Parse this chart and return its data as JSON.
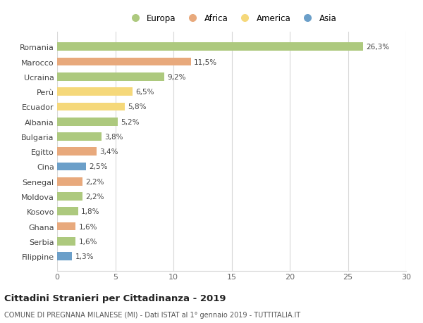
{
  "countries": [
    "Romania",
    "Marocco",
    "Ucraina",
    "Perù",
    "Ecuador",
    "Albania",
    "Bulgaria",
    "Egitto",
    "Cina",
    "Senegal",
    "Moldova",
    "Kosovo",
    "Ghana",
    "Serbia",
    "Filippine"
  ],
  "values": [
    26.3,
    11.5,
    9.2,
    6.5,
    5.8,
    5.2,
    3.8,
    3.4,
    2.5,
    2.2,
    2.2,
    1.8,
    1.6,
    1.6,
    1.3
  ],
  "labels": [
    "26,3%",
    "11,5%",
    "9,2%",
    "6,5%",
    "5,8%",
    "5,2%",
    "3,8%",
    "3,4%",
    "2,5%",
    "2,2%",
    "2,2%",
    "1,8%",
    "1,6%",
    "1,6%",
    "1,3%"
  ],
  "continents": [
    "Europa",
    "Africa",
    "Europa",
    "America",
    "America",
    "Europa",
    "Europa",
    "Africa",
    "Asia",
    "Africa",
    "Europa",
    "Europa",
    "Africa",
    "Europa",
    "Asia"
  ],
  "colors": {
    "Europa": "#adc97e",
    "Africa": "#e8a97c",
    "America": "#f5d87a",
    "Asia": "#6b9fc9"
  },
  "title": "Cittadini Stranieri per Cittadinanza - 2019",
  "subtitle": "COMUNE DI PREGNANA MILANESE (MI) - Dati ISTAT al 1° gennaio 2019 - TUTTITALIA.IT",
  "xlim": [
    0,
    30
  ],
  "xticks": [
    0,
    5,
    10,
    15,
    20,
    25,
    30
  ],
  "background_color": "#ffffff",
  "grid_color": "#d8d8d8"
}
